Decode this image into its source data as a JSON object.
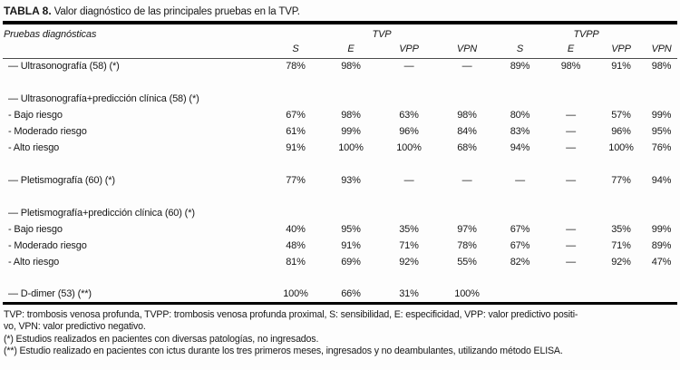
{
  "title": {
    "label": "TABLA 8.",
    "text": "Valor diagnóstico de las principales pruebas en la TVP."
  },
  "header": {
    "col_label": "Pruebas diagnósticas",
    "groups": [
      {
        "label": "TVP"
      },
      {
        "label": "TVPP"
      }
    ],
    "columns": [
      "S",
      "E",
      "VPP",
      "VPN",
      "S",
      "E",
      "VPP",
      "VPN"
    ]
  },
  "table": {
    "rows": [
      {
        "type": "data",
        "label": "— Ultrasonografía (58) (*)",
        "values": [
          "78%",
          "98%",
          "—",
          "—",
          "89%",
          "98%",
          "91%",
          "98%"
        ]
      },
      {
        "type": "spacer"
      },
      {
        "type": "group",
        "label": "— Ultrasonografía+predicción clínica (58) (*)"
      },
      {
        "type": "data",
        "label": "- Bajo riesgo",
        "values": [
          "67%",
          "98%",
          "63%",
          "98%",
          "80%",
          "—",
          "57%",
          "99%"
        ]
      },
      {
        "type": "data",
        "label": "- Moderado riesgo",
        "values": [
          "61%",
          "99%",
          "96%",
          "84%",
          "83%",
          "—",
          "96%",
          "95%"
        ]
      },
      {
        "type": "data",
        "label": "- Alto riesgo",
        "values": [
          "91%",
          "100%",
          "100%",
          "68%",
          "94%",
          "—",
          "100%",
          "76%"
        ]
      },
      {
        "type": "spacer"
      },
      {
        "type": "data",
        "label": "— Pletismografía (60) (*)",
        "values": [
          "77%",
          "93%",
          "—",
          "—",
          "—",
          "—",
          "77%",
          "94%"
        ]
      },
      {
        "type": "spacer"
      },
      {
        "type": "group",
        "label": "— Pletismografía+predicción clínica (60) (*)"
      },
      {
        "type": "data",
        "label": "- Bajo riesgo",
        "values": [
          "40%",
          "95%",
          "35%",
          "97%",
          "67%",
          "—",
          "35%",
          "99%"
        ]
      },
      {
        "type": "data",
        "label": "- Moderado riesgo",
        "values": [
          "48%",
          "91%",
          "71%",
          "78%",
          "67%",
          "—",
          "71%",
          "89%"
        ]
      },
      {
        "type": "data",
        "label": "- Alto riesgo",
        "values": [
          "81%",
          "69%",
          "92%",
          "55%",
          "82%",
          "—",
          "92%",
          "47%"
        ]
      },
      {
        "type": "spacer"
      },
      {
        "type": "data",
        "label": "— D-dimer (53) (**)",
        "values": [
          "100%",
          "66%",
          "31%",
          "100%",
          "",
          "",
          "",
          ""
        ]
      }
    ]
  },
  "footnotes": [
    "TVP: trombosis venosa profunda, TVPP: trombosis venosa profunda proximal, S: sensibilidad, E: especificidad, VPP: valor predictivo positi-",
    "vo, VPN: valor predictivo negativo.",
    "(*) Estudios realizados en pacientes con diversas patologías, no ingresados.",
    "(**) Estudio realizado en pacientes con ictus durante los tres primeros meses, ingresados y no deambulantes, utilizando método ELISA."
  ]
}
